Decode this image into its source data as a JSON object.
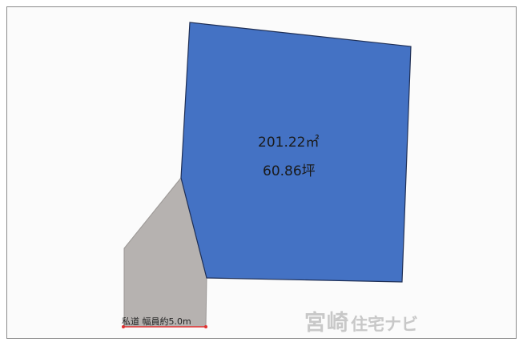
{
  "lot": {
    "area_sqm": "201.22㎡",
    "area_tsubo": "60.86坪",
    "fill_color": "#4472c4",
    "stroke_color": "#1f2f55"
  },
  "road": {
    "label": "私道 幅員約5.0m",
    "fill_color": "#b6b2b0",
    "dimension_color": "#e03030"
  },
  "watermark": {
    "main": "宮崎",
    "sub": "住宅ナビ",
    "color": "#c8c8c8"
  }
}
